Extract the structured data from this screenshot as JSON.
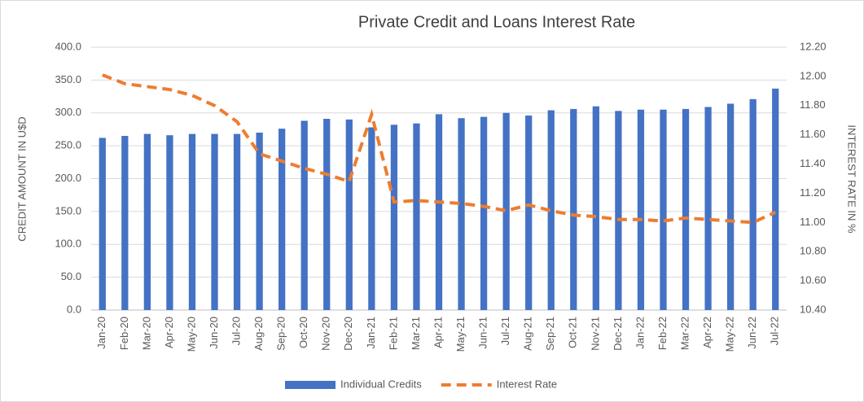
{
  "chart_data": {
    "type": "bar_line",
    "title": "Private Credit and Loans Interest Rate",
    "y_label": "CREDIT AMOUNT IN U$D",
    "y2_label": "INTEREST RATE IN %",
    "categories": [
      "Jan-20",
      "Feb-20",
      "Mar-20",
      "Apr-20",
      "May-20",
      "Jun-20",
      "Jul-20",
      "Aug-20",
      "Sep-20",
      "Oct-20",
      "Nov-20",
      "Dec-20",
      "Jan-21",
      "Feb-21",
      "Mar-21",
      "Apr-21",
      "May-21",
      "Jun-21",
      "Jul-21",
      "Aug-21",
      "Sep-21",
      "Oct-21",
      "Nov-21",
      "Dec-21",
      "Jan-22",
      "Feb-22",
      "Mar-22",
      "Apr-22",
      "May-22",
      "Jun-22",
      "Jul-22"
    ],
    "series": [
      {
        "name": "Individual Credits",
        "type": "bar",
        "color": "#4472c4",
        "values": [
          262,
          265,
          268,
          266,
          268,
          268,
          268,
          270,
          276,
          288,
          291,
          290,
          278,
          282,
          284,
          298,
          292,
          294,
          300,
          296,
          304,
          306,
          310,
          303,
          305,
          305,
          306,
          309,
          314,
          321,
          337
        ]
      },
      {
        "name": "Interest Rate",
        "type": "line",
        "axis": "y2",
        "color": "#ed7d31",
        "dashed": true,
        "values": [
          12.01,
          11.95,
          11.93,
          11.91,
          11.87,
          11.8,
          11.69,
          11.47,
          11.42,
          11.37,
          11.33,
          11.28,
          11.74,
          11.14,
          11.15,
          11.14,
          11.13,
          11.11,
          11.08,
          11.12,
          11.08,
          11.05,
          11.04,
          11.02,
          11.02,
          11.01,
          11.03,
          11.02,
          11.01,
          11.0,
          11.07
        ]
      }
    ],
    "ylim": [
      0,
      400
    ],
    "yticks": [
      {
        "value": 0,
        "label": "0.0"
      },
      {
        "value": 50,
        "label": "50.0"
      },
      {
        "value": 100,
        "label": "100.0"
      },
      {
        "value": 150,
        "label": "150.0"
      },
      {
        "value": 200,
        "label": "200.0"
      },
      {
        "value": 250,
        "label": "250.0"
      },
      {
        "value": 300,
        "label": "300.0"
      },
      {
        "value": 350,
        "label": "350.0"
      },
      {
        "value": 400,
        "label": "400.0"
      }
    ],
    "y2lim": [
      10.4,
      12.2
    ],
    "y2ticks": [
      {
        "value": 10.4,
        "label": "10.40"
      },
      {
        "value": 10.6,
        "label": "10.60"
      },
      {
        "value": 10.8,
        "label": "10.80"
      },
      {
        "value": 11,
        "label": "11.00"
      },
      {
        "value": 11.2,
        "label": "11.20"
      },
      {
        "value": 11.4,
        "label": "11.40"
      },
      {
        "value": 11.6,
        "label": "11.60"
      },
      {
        "value": 11.8,
        "label": "11.80"
      },
      {
        "value": 12,
        "label": "12.00"
      },
      {
        "value": 12.2,
        "label": "12.20"
      }
    ],
    "grid": true,
    "legend": "bottom"
  }
}
